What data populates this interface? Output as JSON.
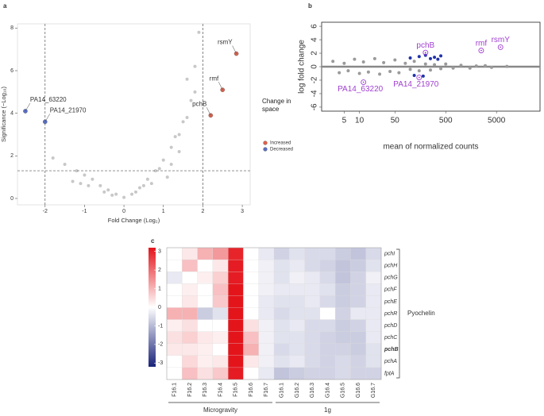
{
  "chart_data": [
    {
      "type": "scatter",
      "panel_label": "a",
      "x_label": "Fold Change (Log₂)",
      "y_label": "Significance (−Log₁₀)",
      "xlim": [
        -2.7,
        3.2
      ],
      "ylim": [
        -0.3,
        8.2
      ],
      "xticks": [
        -2,
        -1,
        0,
        1,
        2,
        3
      ],
      "yticks": [
        0,
        2,
        4,
        6,
        8
      ],
      "vlines": [
        -2,
        2
      ],
      "hlines": [
        1.3
      ],
      "reference_line_style": "dashed",
      "legend_title": "Change in space",
      "series": [
        {
          "color": "#c8c8c8",
          "x": [
            -1.8,
            -1.5,
            -1.2,
            -1.0,
            -0.8,
            -0.6,
            -0.4,
            -0.2,
            0,
            0.2,
            0.4,
            0.6,
            0.8,
            1.0,
            1.2,
            1.4,
            1.6,
            1.8,
            1.9,
            -1.3,
            -0.9,
            -0.5,
            0.5,
            0.9,
            1.3,
            1.5,
            1.7,
            0.7,
            1.1,
            -0.3,
            0.3,
            -1.1,
            1.6,
            1.8,
            1.2,
            1.4
          ],
          "values": [
            1.9,
            1.6,
            1.3,
            1.1,
            0.9,
            0.6,
            0.4,
            0.2,
            0.05,
            0.2,
            0.5,
            0.9,
            1.3,
            1.8,
            2.4,
            3.0,
            3.8,
            5.0,
            7.8,
            0.8,
            0.6,
            0.3,
            0.6,
            1.4,
            2.9,
            3.6,
            4.6,
            0.7,
            1.0,
            0.15,
            0.3,
            0.7,
            5.6,
            6.2,
            1.6,
            2.2
          ]
        },
        {
          "name": "Increased",
          "color": "#e0604a",
          "x": [
            2.85,
            2.5,
            2.2
          ],
          "values": [
            6.8,
            5.1,
            3.9
          ],
          "labels": [
            "rsmY",
            "rmf",
            "pchB"
          ]
        },
        {
          "name": "Decreased",
          "color": "#5a6fc4",
          "x": [
            -2.5,
            -2.0
          ],
          "values": [
            4.1,
            3.6
          ],
          "labels": [
            "PA14_63220",
            "PA14_21970"
          ]
        }
      ]
    },
    {
      "type": "scatter",
      "panel_label": "b",
      "x_label": "mean of normalized counts",
      "y_label": "log fold change",
      "xlog": true,
      "xlim": [
        1.8,
        36000
      ],
      "ylim": [
        -6.6,
        6.6
      ],
      "xticks": [
        5,
        10,
        50,
        500,
        5000
      ],
      "yticks": [
        -6,
        -4,
        -2,
        0,
        2,
        4,
        6
      ],
      "hlines": [
        0
      ],
      "reference_line_style": "solid",
      "series": [
        {
          "color": "#9a9a9a",
          "x": [
            3,
            4,
            5,
            6,
            8,
            10,
            12,
            15,
            20,
            25,
            30,
            40,
            50,
            60,
            80,
            100,
            120,
            150,
            200,
            250,
            300,
            400,
            500,
            700,
            1000,
            1500,
            2000,
            3000,
            4000,
            8000
          ],
          "values": [
            0.8,
            -0.9,
            0.5,
            -0.6,
            1.1,
            -1.0,
            0.7,
            -0.8,
            1.2,
            -1.1,
            0.6,
            -0.7,
            1.0,
            -0.9,
            0.5,
            -0.4,
            0.8,
            -0.6,
            0.4,
            -0.5,
            0.3,
            -0.3,
            0.4,
            -0.2,
            0.2,
            -0.2,
            0.1,
            0.15,
            -0.1,
            0.05
          ]
        },
        {
          "color": "#2233aa",
          "x": [
            100,
            150,
            200,
            250,
            300,
            400,
            120,
            180,
            350
          ],
          "values": [
            1.3,
            1.5,
            1.7,
            1.2,
            1.4,
            1.6,
            -1.3,
            -1.4,
            1.1
          ]
        },
        {
          "color": "#a040d0",
          "marker": "circled",
          "x": [
            200,
            2500,
            6000,
            150,
            12
          ],
          "values": [
            2.1,
            2.4,
            2.9,
            -1.6,
            -2.3
          ],
          "labels": [
            "pchB",
            "rmf",
            "rsmY",
            "PA14_21970",
            "PA14_63220"
          ]
        }
      ]
    },
    {
      "type": "heatmap",
      "panel_label": "c",
      "columns": [
        "F16.1",
        "F16.2",
        "F16.3",
        "F16.4",
        "F16.5",
        "F16.6",
        "F16.7",
        "G16.1",
        "G16.2",
        "G16.3",
        "G16.4",
        "G16.5",
        "G16.6",
        "G16.7"
      ],
      "rows": [
        "pchI",
        "pchH",
        "pchG",
        "pchF",
        "pchE",
        "pchR",
        "pchD",
        "pchC",
        "pchB",
        "pchA",
        "fptA"
      ],
      "bold_rows": [
        8
      ],
      "values": [
        [
          0,
          0.3,
          1,
          1.3,
          2.8,
          0,
          -0.3,
          -0.6,
          -0.4,
          -0.5,
          -0.5,
          -0.7,
          -0.8,
          -0.5
        ],
        [
          0,
          0.8,
          0,
          0.3,
          2.9,
          0,
          -0.2,
          -0.4,
          -0.3,
          -0.5,
          -0.6,
          -0.8,
          -0.7,
          -0.4
        ],
        [
          -0.3,
          0,
          0.2,
          0.6,
          2.9,
          0,
          -0.2,
          -0.4,
          -0.2,
          -0.3,
          -0.5,
          -0.8,
          -0.6,
          -0.2
        ],
        [
          0,
          0.2,
          0,
          0.8,
          3,
          0,
          -0.2,
          -0.3,
          -0.3,
          -0.3,
          -0.4,
          -0.7,
          -0.6,
          -0.3
        ],
        [
          0,
          0.3,
          0,
          0.7,
          3,
          0,
          -0.3,
          -0.4,
          -0.4,
          -0.3,
          -0.5,
          -0.7,
          -0.6,
          -0.3
        ],
        [
          1,
          1,
          -0.7,
          -0.4,
          3,
          0,
          -0.3,
          -0.5,
          -0.4,
          -0.4,
          0,
          -0.6,
          -0.3,
          -0.3
        ],
        [
          0.2,
          0.4,
          0,
          0,
          3,
          0.4,
          -0.2,
          -0.4,
          -0.3,
          -0.5,
          -0.5,
          -0.7,
          -0.6,
          -0.3
        ],
        [
          0.4,
          0.6,
          0.3,
          0.2,
          3,
          0.8,
          -0.2,
          -0.4,
          -0.4,
          -0.5,
          -0.6,
          -0.7,
          -0.7,
          -0.3
        ],
        [
          0.3,
          0.3,
          0.2,
          0,
          3,
          1,
          -0.2,
          -0.5,
          -0.4,
          -0.5,
          -0.6,
          -0.6,
          -0.7,
          -0.4
        ],
        [
          0,
          0.5,
          0.2,
          0.3,
          3,
          0.3,
          -0.2,
          -0.4,
          -0.3,
          -0.5,
          -0.6,
          -0.5,
          -0.6,
          -0.4
        ],
        [
          0,
          0.8,
          0.4,
          0.7,
          2.9,
          0,
          -0.3,
          -0.8,
          -0.7,
          -0.6,
          -0.6,
          -0.5,
          -0.6,
          -0.6
        ]
      ],
      "clim": [
        -3.2,
        3.2
      ],
      "cticks": [
        -3,
        -2,
        -1,
        0,
        1,
        2,
        3
      ],
      "low_color": "#1a237a",
      "mid_color": "#ffffff",
      "high_color": "#e4141b",
      "column_groups": [
        {
          "label": "Microgravity",
          "start": 0,
          "end": 6
        },
        {
          "label": "1g",
          "start": 7,
          "end": 13
        }
      ],
      "row_group": {
        "label": "Pyochelin",
        "start": 0,
        "end": 10
      }
    }
  ]
}
